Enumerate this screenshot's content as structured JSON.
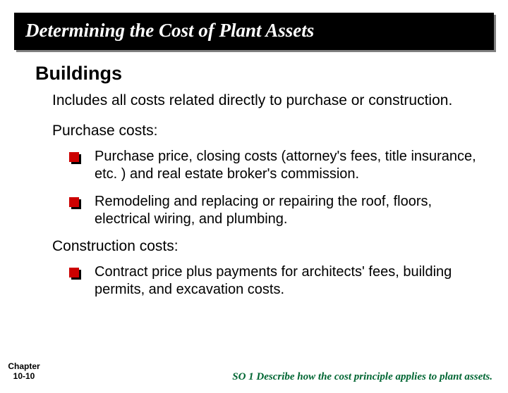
{
  "title": "Determining the Cost of Plant Assets",
  "heading": "Buildings",
  "intro": "Includes all costs related directly to purchase or construction.",
  "purchase": {
    "label": "Purchase costs:",
    "items": [
      "Purchase price, closing costs (attorney's fees, title insurance, etc. ) and real estate broker's commission.",
      "Remodeling and replacing or repairing the roof, floors, electrical wiring, and plumbing."
    ]
  },
  "construction": {
    "label": "Construction costs:",
    "items": [
      "Contract price plus payments for architects' fees, building permits, and excavation costs."
    ]
  },
  "chapter": {
    "line1": "Chapter",
    "line2": "10-10"
  },
  "footer": "SO 1  Describe how the cost principle applies to plant assets.",
  "colors": {
    "title_bg": "#000000",
    "title_text": "#ffffff",
    "bullet_front": "#cc0000",
    "bullet_shadow": "#000000",
    "footer_text": "#006633",
    "body_text": "#000000"
  }
}
